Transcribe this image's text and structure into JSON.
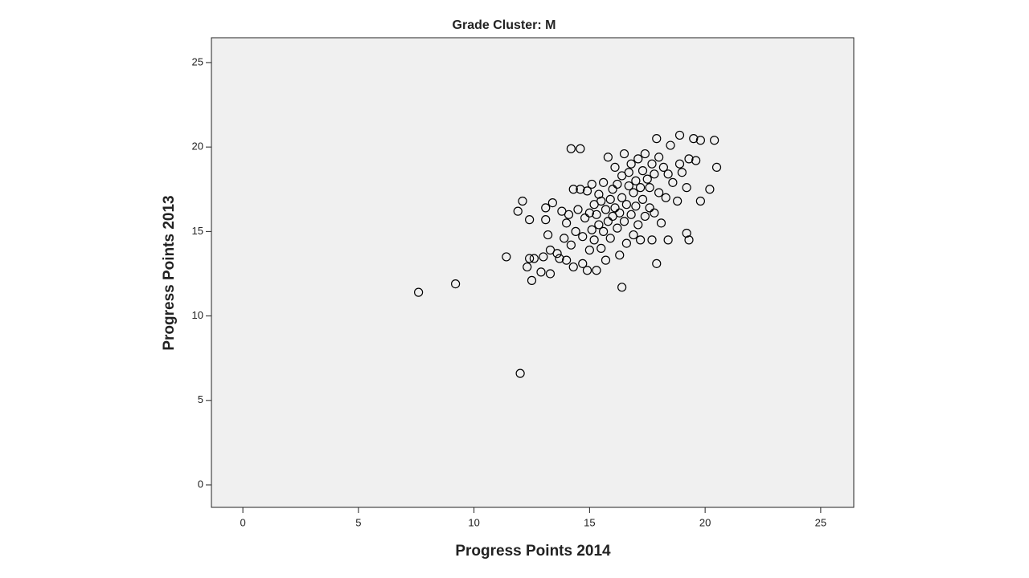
{
  "chart_data": {
    "type": "scatter",
    "title": "Grade Cluster: M",
    "x_label": "Progress Points 2014",
    "y_label": "Progress Points 2013",
    "x": [
      7.6,
      9.2,
      12.0,
      16.4,
      11.4,
      11.9,
      12.1,
      12.4,
      12.3,
      12.5,
      12.4,
      12.6,
      12.9,
      13.0,
      13.1,
      13.1,
      13.2,
      13.3,
      13.3,
      13.4,
      13.6,
      13.7,
      13.8,
      13.9,
      14.0,
      14.0,
      14.1,
      14.2,
      14.2,
      14.3,
      14.3,
      14.4,
      14.5,
      14.6,
      14.6,
      14.7,
      14.7,
      14.8,
      14.9,
      14.9,
      15.0,
      15.0,
      15.1,
      15.1,
      15.2,
      15.2,
      15.3,
      15.3,
      15.4,
      15.4,
      15.5,
      15.5,
      15.6,
      15.6,
      15.7,
      15.7,
      15.8,
      15.8,
      15.9,
      15.9,
      16.0,
      16.0,
      16.1,
      16.1,
      16.2,
      16.2,
      16.3,
      16.3,
      16.4,
      16.4,
      16.5,
      16.5,
      16.6,
      16.6,
      16.7,
      16.7,
      16.8,
      16.8,
      16.9,
      16.9,
      17.0,
      17.0,
      17.1,
      17.1,
      17.2,
      17.2,
      17.3,
      17.3,
      17.4,
      17.4,
      17.5,
      17.6,
      17.6,
      17.7,
      17.7,
      17.8,
      17.8,
      17.9,
      17.9,
      18.0,
      18.0,
      18.1,
      18.2,
      18.3,
      18.4,
      18.4,
      18.5,
      18.6,
      18.8,
      18.9,
      18.9,
      19.0,
      19.2,
      19.2,
      19.3,
      19.3,
      19.5,
      19.6,
      19.8,
      19.8,
      20.2,
      20.4,
      20.5
    ],
    "values": [
      11.4,
      11.9,
      6.6,
      11.7,
      13.5,
      16.2,
      16.8,
      15.7,
      12.9,
      12.1,
      13.4,
      13.4,
      12.6,
      13.5,
      16.4,
      15.7,
      14.8,
      12.5,
      13.9,
      16.7,
      13.7,
      13.4,
      16.2,
      14.6,
      13.3,
      15.5,
      16.0,
      14.2,
      19.9,
      12.9,
      17.5,
      15.0,
      16.3,
      17.5,
      19.9,
      13.1,
      14.7,
      15.8,
      12.7,
      17.4,
      13.9,
      16.1,
      15.1,
      17.8,
      14.5,
      16.6,
      12.7,
      16.0,
      15.4,
      17.2,
      14.0,
      16.8,
      15.0,
      17.9,
      13.3,
      16.3,
      15.6,
      19.4,
      16.9,
      14.6,
      17.5,
      15.9,
      18.8,
      16.4,
      15.2,
      17.8,
      13.6,
      16.1,
      17.0,
      18.3,
      15.6,
      19.6,
      16.6,
      14.3,
      17.7,
      18.5,
      16.0,
      19.0,
      17.3,
      14.8,
      18.0,
      16.5,
      19.3,
      15.4,
      17.6,
      14.5,
      18.6,
      16.9,
      19.6,
      15.9,
      18.1,
      16.4,
      17.6,
      19.0,
      14.5,
      18.4,
      16.1,
      13.1,
      20.5,
      17.3,
      19.4,
      15.5,
      18.8,
      17.0,
      14.5,
      18.4,
      20.1,
      17.9,
      16.8,
      20.7,
      19.0,
      18.5,
      17.6,
      14.9,
      19.3,
      14.5,
      20.5,
      19.2,
      20.4,
      16.8,
      17.5,
      20.4,
      18.8
    ],
    "xlim": [
      -1.36,
      26.43
    ],
    "ylim": [
      -1.33,
      26.47
    ],
    "xticks": [
      0,
      5,
      10,
      15,
      20,
      25
    ],
    "yticks": [
      0,
      5,
      10,
      15,
      20,
      25
    ],
    "marker_color": "#000000",
    "background": "#f0f0f0"
  }
}
